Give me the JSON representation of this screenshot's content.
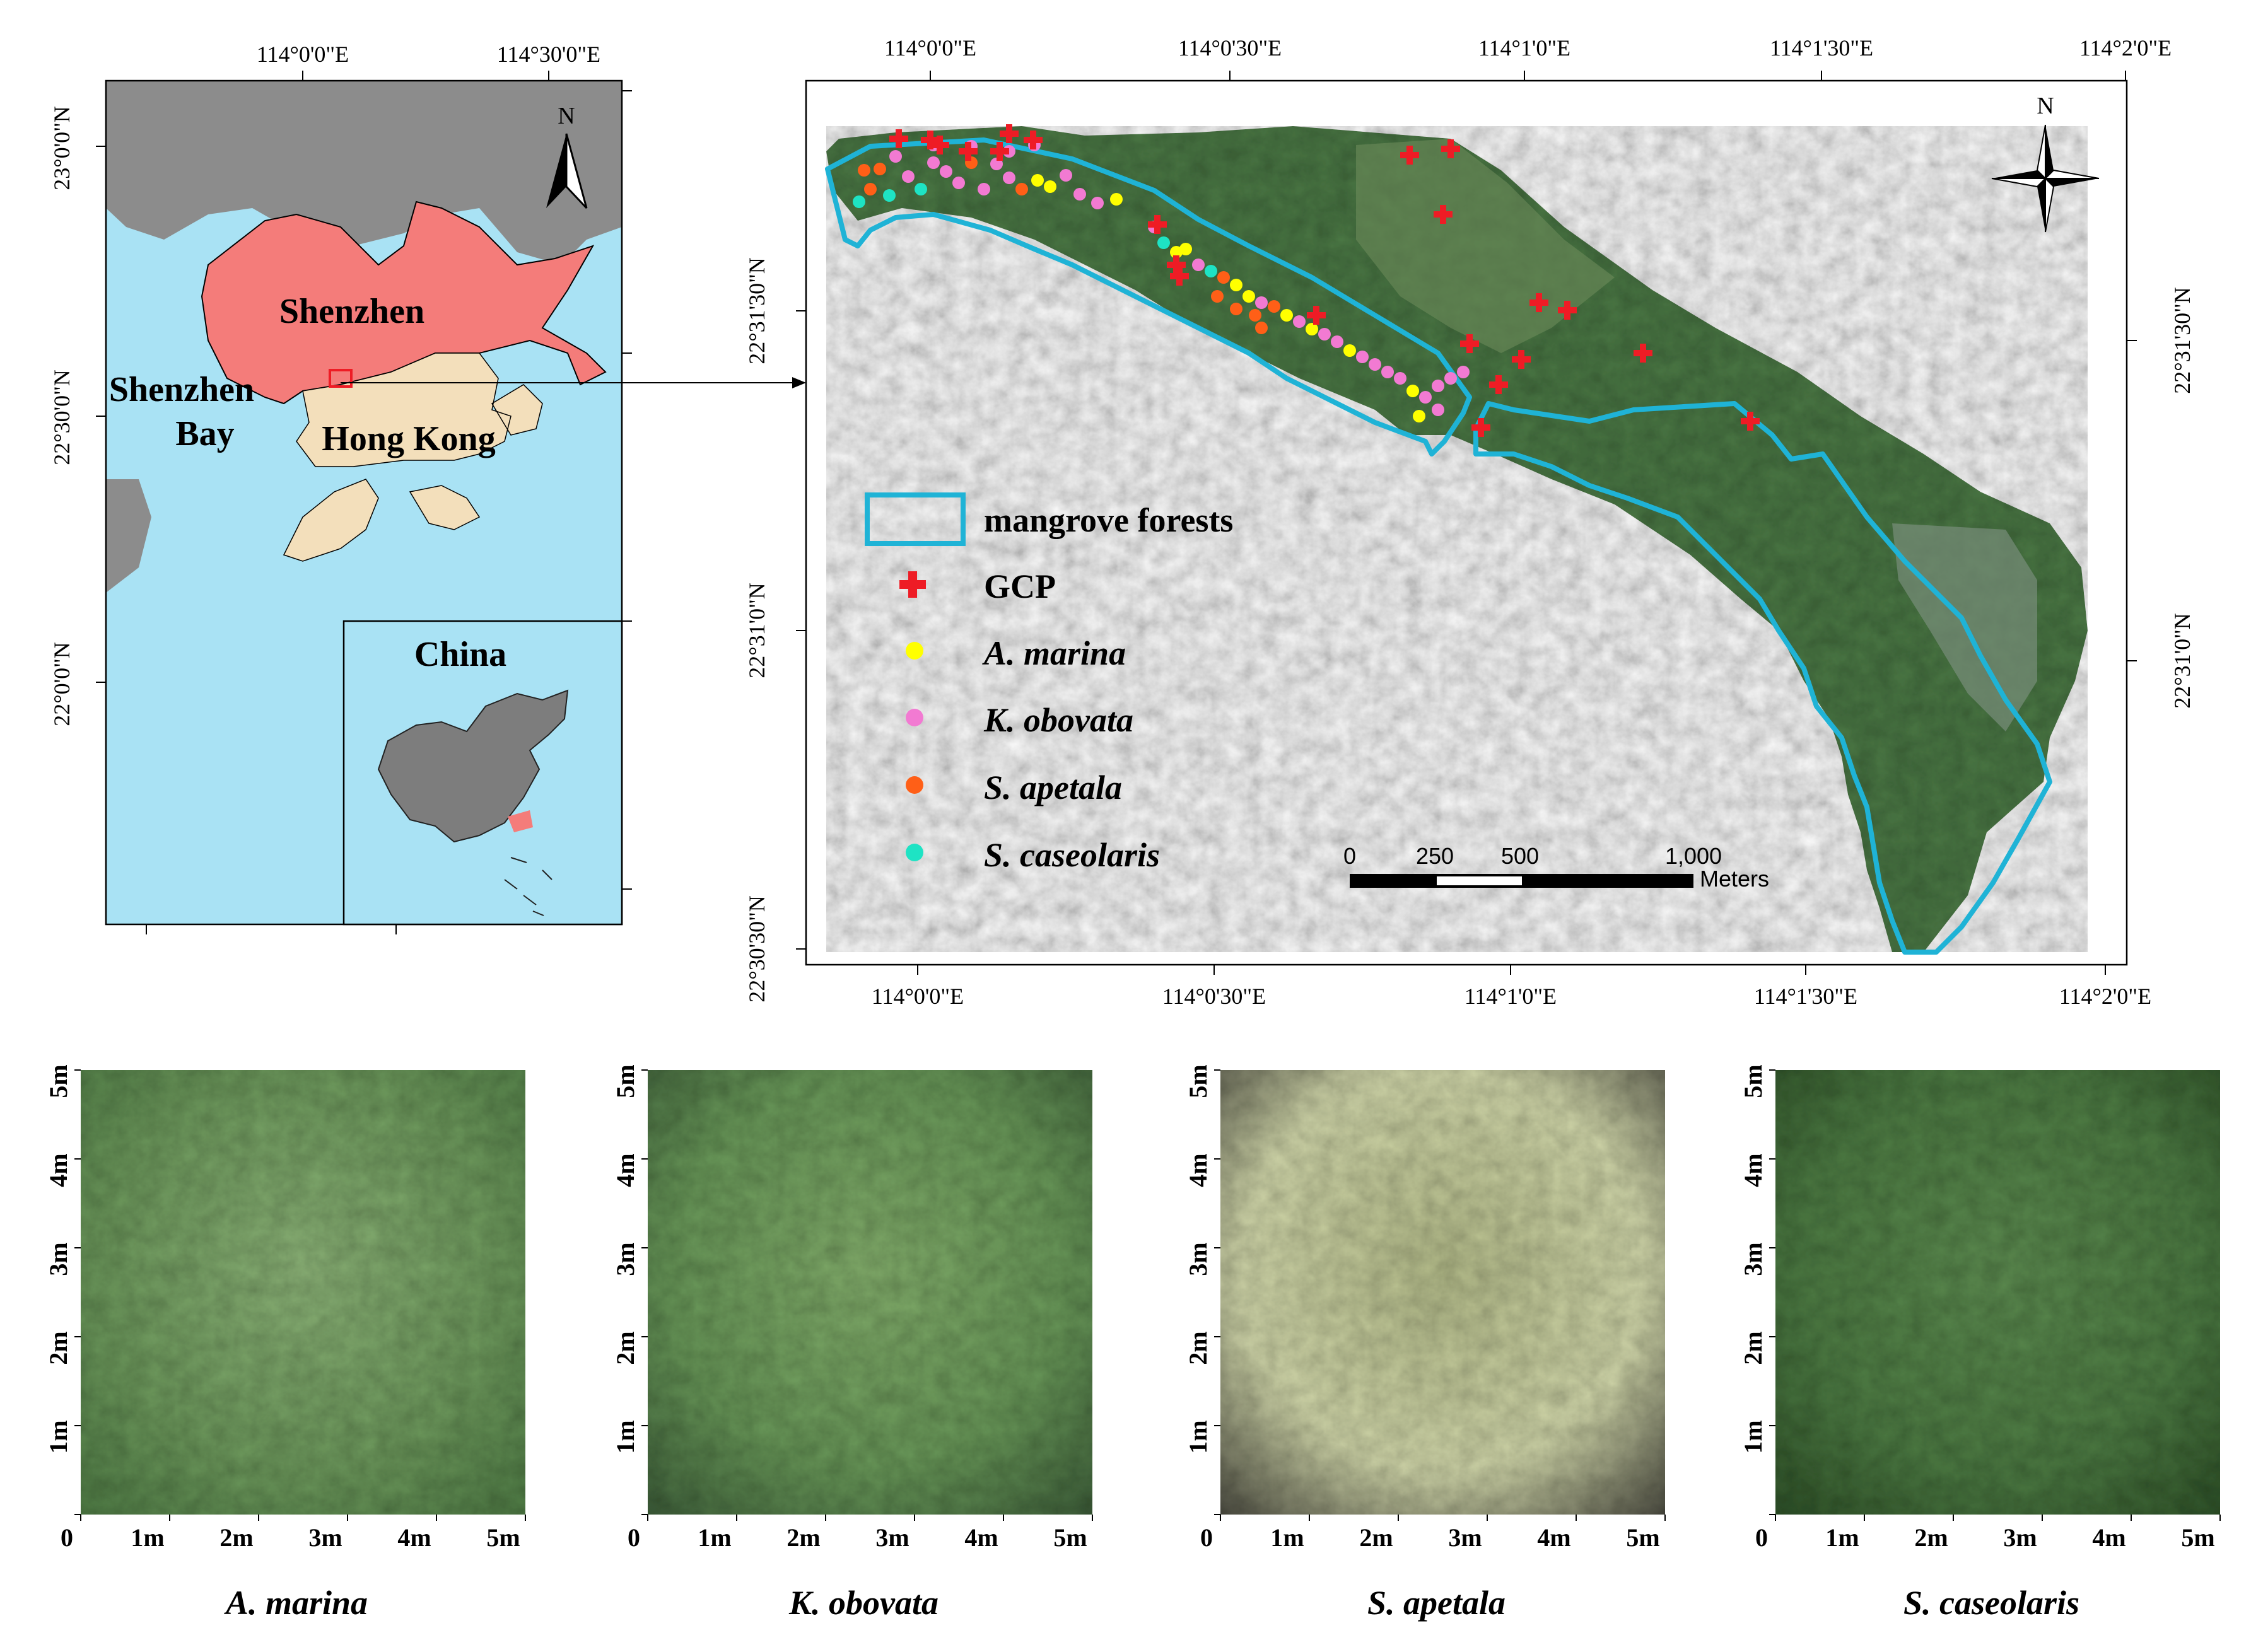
{
  "location_map": {
    "top_lon_labels": [
      "114°0'0\"E",
      "114°30'0\"E"
    ],
    "lat_labels": [
      "23°0'0\"N",
      "22°30'0\"N",
      "22°0'0\"N"
    ],
    "north_label": "N",
    "places": {
      "shenzhen": "Shenzhen",
      "shenzhen_bay_line1": "Shenzhen",
      "shenzhen_bay_line2": "Bay",
      "hong_kong": "Hong Kong"
    },
    "inset_title": "China",
    "colors": {
      "land": "#8c8c8c",
      "shenzhen": "#f47c7a",
      "hong_kong": "#f3dfbb",
      "water": "#a9e2f4",
      "china": "#7d7d7d",
      "study_area": "#ee1c25"
    }
  },
  "study_map": {
    "top_lon_labels": [
      "114°0'0\"E",
      "114°0'30\"E",
      "114°1'0\"E",
      "114°1'30\"E",
      "114°2'0\"E"
    ],
    "bottom_lon_labels": [
      "114°0'0\"E",
      "114°0'30\"E",
      "114°1'0\"E",
      "114°1'30\"E",
      "114°2'0\"E"
    ],
    "left_lat_labels": [
      "22°31'30\"N",
      "22°31'0\"N",
      "22°30'30\"N"
    ],
    "right_lat_labels": [
      "22°31'30\"N",
      "22°31'0\"N"
    ],
    "north_label": "N",
    "legend": [
      {
        "label": "mangrove forests",
        "symbol": "rect",
        "color": "#1fb3d6"
      },
      {
        "label": "GCP",
        "symbol": "cross",
        "color": "#ee1c25"
      },
      {
        "label": "A. marina",
        "symbol": "dot",
        "color": "#ffff00",
        "italic": true
      },
      {
        "label": "K. obovata",
        "symbol": "dot",
        "color": "#f27ad2",
        "italic": true
      },
      {
        "label": "S. apetala",
        "symbol": "dot",
        "color": "#ff5f17",
        "italic": true
      },
      {
        "label": "S. caseolaris",
        "symbol": "dot",
        "color": "#1ee3c4",
        "italic": true
      }
    ],
    "scale_bar": {
      "ticks": [
        "0",
        "250",
        "500",
        "1,000"
      ],
      "unit": "Meters"
    }
  },
  "patches": [
    {
      "label": "A. marina",
      "colors": [
        "#6f9c5e",
        "#8fb77a",
        "#4f7c45"
      ]
    },
    {
      "label": "K. obovata",
      "colors": [
        "#6a9a5a",
        "#86b26e",
        "#3e5f3a"
      ]
    },
    {
      "label": "S. apetala",
      "colors": [
        "#d6dcae",
        "#b7bf8c",
        "#4a4a40"
      ]
    },
    {
      "label": "S. caseolaris",
      "colors": [
        "#4e7d44",
        "#5f8f52",
        "#2f5229"
      ]
    }
  ],
  "patch_axes": {
    "y_labels": [
      "5m",
      "4m",
      "3m",
      "2m",
      "1m"
    ],
    "x_labels": [
      "0",
      "1m",
      "2m",
      "3m",
      "4m",
      "5m"
    ]
  }
}
